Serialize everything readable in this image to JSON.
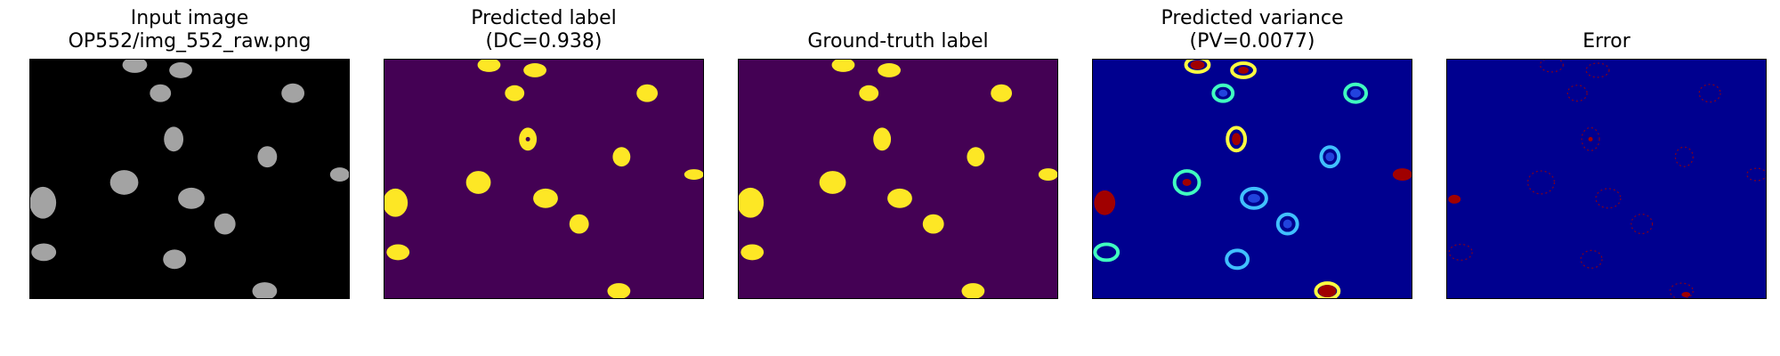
{
  "panels": [
    {
      "title_line1": "Input image",
      "title_line2": "OP552/img_552_raw.png",
      "bg": "#000000"
    },
    {
      "title_line1": "Predicted label",
      "title_line2": "(DC=0.938)",
      "bg": "#440154"
    },
    {
      "title_line1": "",
      "title_line2": "Ground-truth label",
      "bg": "#440154"
    },
    {
      "title_line1": "Predicted variance",
      "title_line2": "(PV=0.0077)",
      "bg": "#00008f"
    },
    {
      "title_line1": "",
      "title_line2": "Error",
      "bg": "#00008f"
    }
  ],
  "colors": {
    "nucleus_gray": "#c8c8c8",
    "label_yellow": "#fde725",
    "jet_red": "#a00000"
  }
}
